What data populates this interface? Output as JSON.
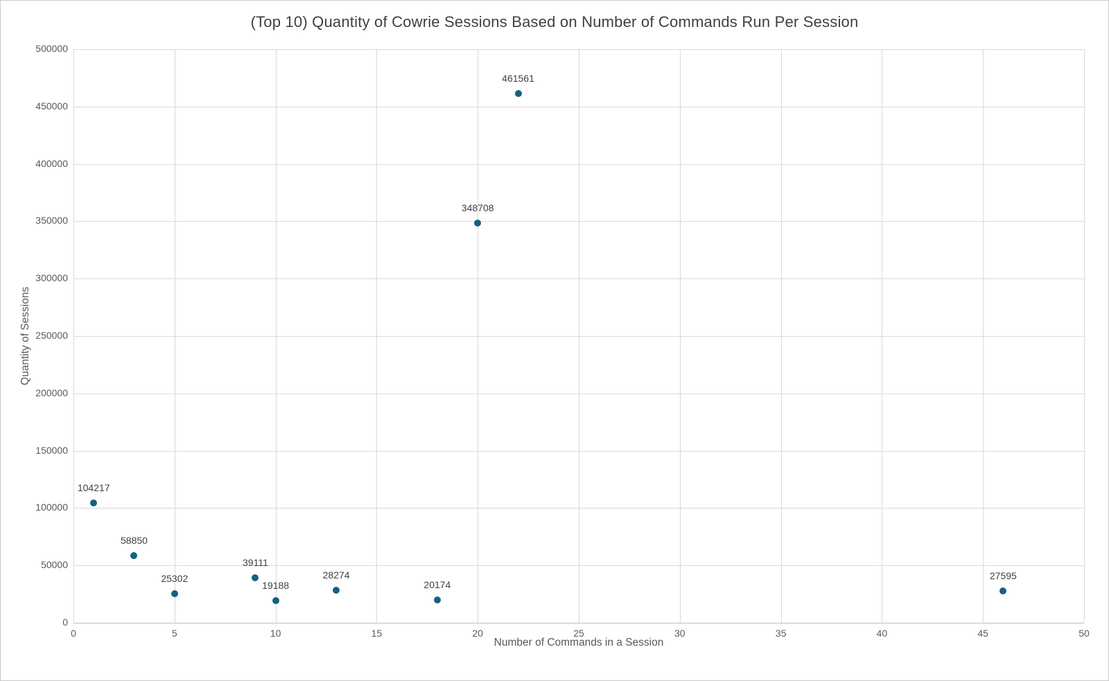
{
  "chart": {
    "title": "(Top 10) Quantity of Cowrie Sessions Based on Number of Commands Run Per Session",
    "x_axis_title": "Number of Commands in a Session",
    "y_axis_title": "Quantity of Sessions"
  },
  "colors": {
    "marker": "#156082",
    "gridline": "#d9d9d9",
    "axis_line": "#bfbfbf",
    "title_text": "#404040",
    "tick_text": "#595959",
    "data_label_text": "#404040",
    "background": "#ffffff"
  },
  "chart_data": {
    "type": "scatter",
    "title": "(Top 10) Quantity of Cowrie Sessions Based on Number of Commands Run Per Session",
    "xlabel": "Number of Commands in a Session",
    "ylabel": "Quantity of Sessions",
    "xlim": [
      0,
      50
    ],
    "ylim": [
      0,
      500000
    ],
    "x_ticks": [
      0,
      5,
      10,
      15,
      20,
      25,
      30,
      35,
      40,
      45,
      50
    ],
    "y_ticks": [
      0,
      50000,
      100000,
      150000,
      200000,
      250000,
      300000,
      350000,
      400000,
      450000,
      500000
    ],
    "grid": true,
    "legend": "none",
    "marker_color": "#156082",
    "points": [
      {
        "x": 1,
        "y": 104217,
        "label": "104217"
      },
      {
        "x": 3,
        "y": 58850,
        "label": "58850"
      },
      {
        "x": 5,
        "y": 25302,
        "label": "25302"
      },
      {
        "x": 9,
        "y": 39111,
        "label": "39111"
      },
      {
        "x": 10,
        "y": 19188,
        "label": "19188"
      },
      {
        "x": 13,
        "y": 28274,
        "label": "28274"
      },
      {
        "x": 18,
        "y": 20174,
        "label": "20174"
      },
      {
        "x": 20,
        "y": 348708,
        "label": "348708"
      },
      {
        "x": 22,
        "y": 461561,
        "label": "461561"
      },
      {
        "x": 46,
        "y": 27595,
        "label": "27595"
      }
    ]
  }
}
